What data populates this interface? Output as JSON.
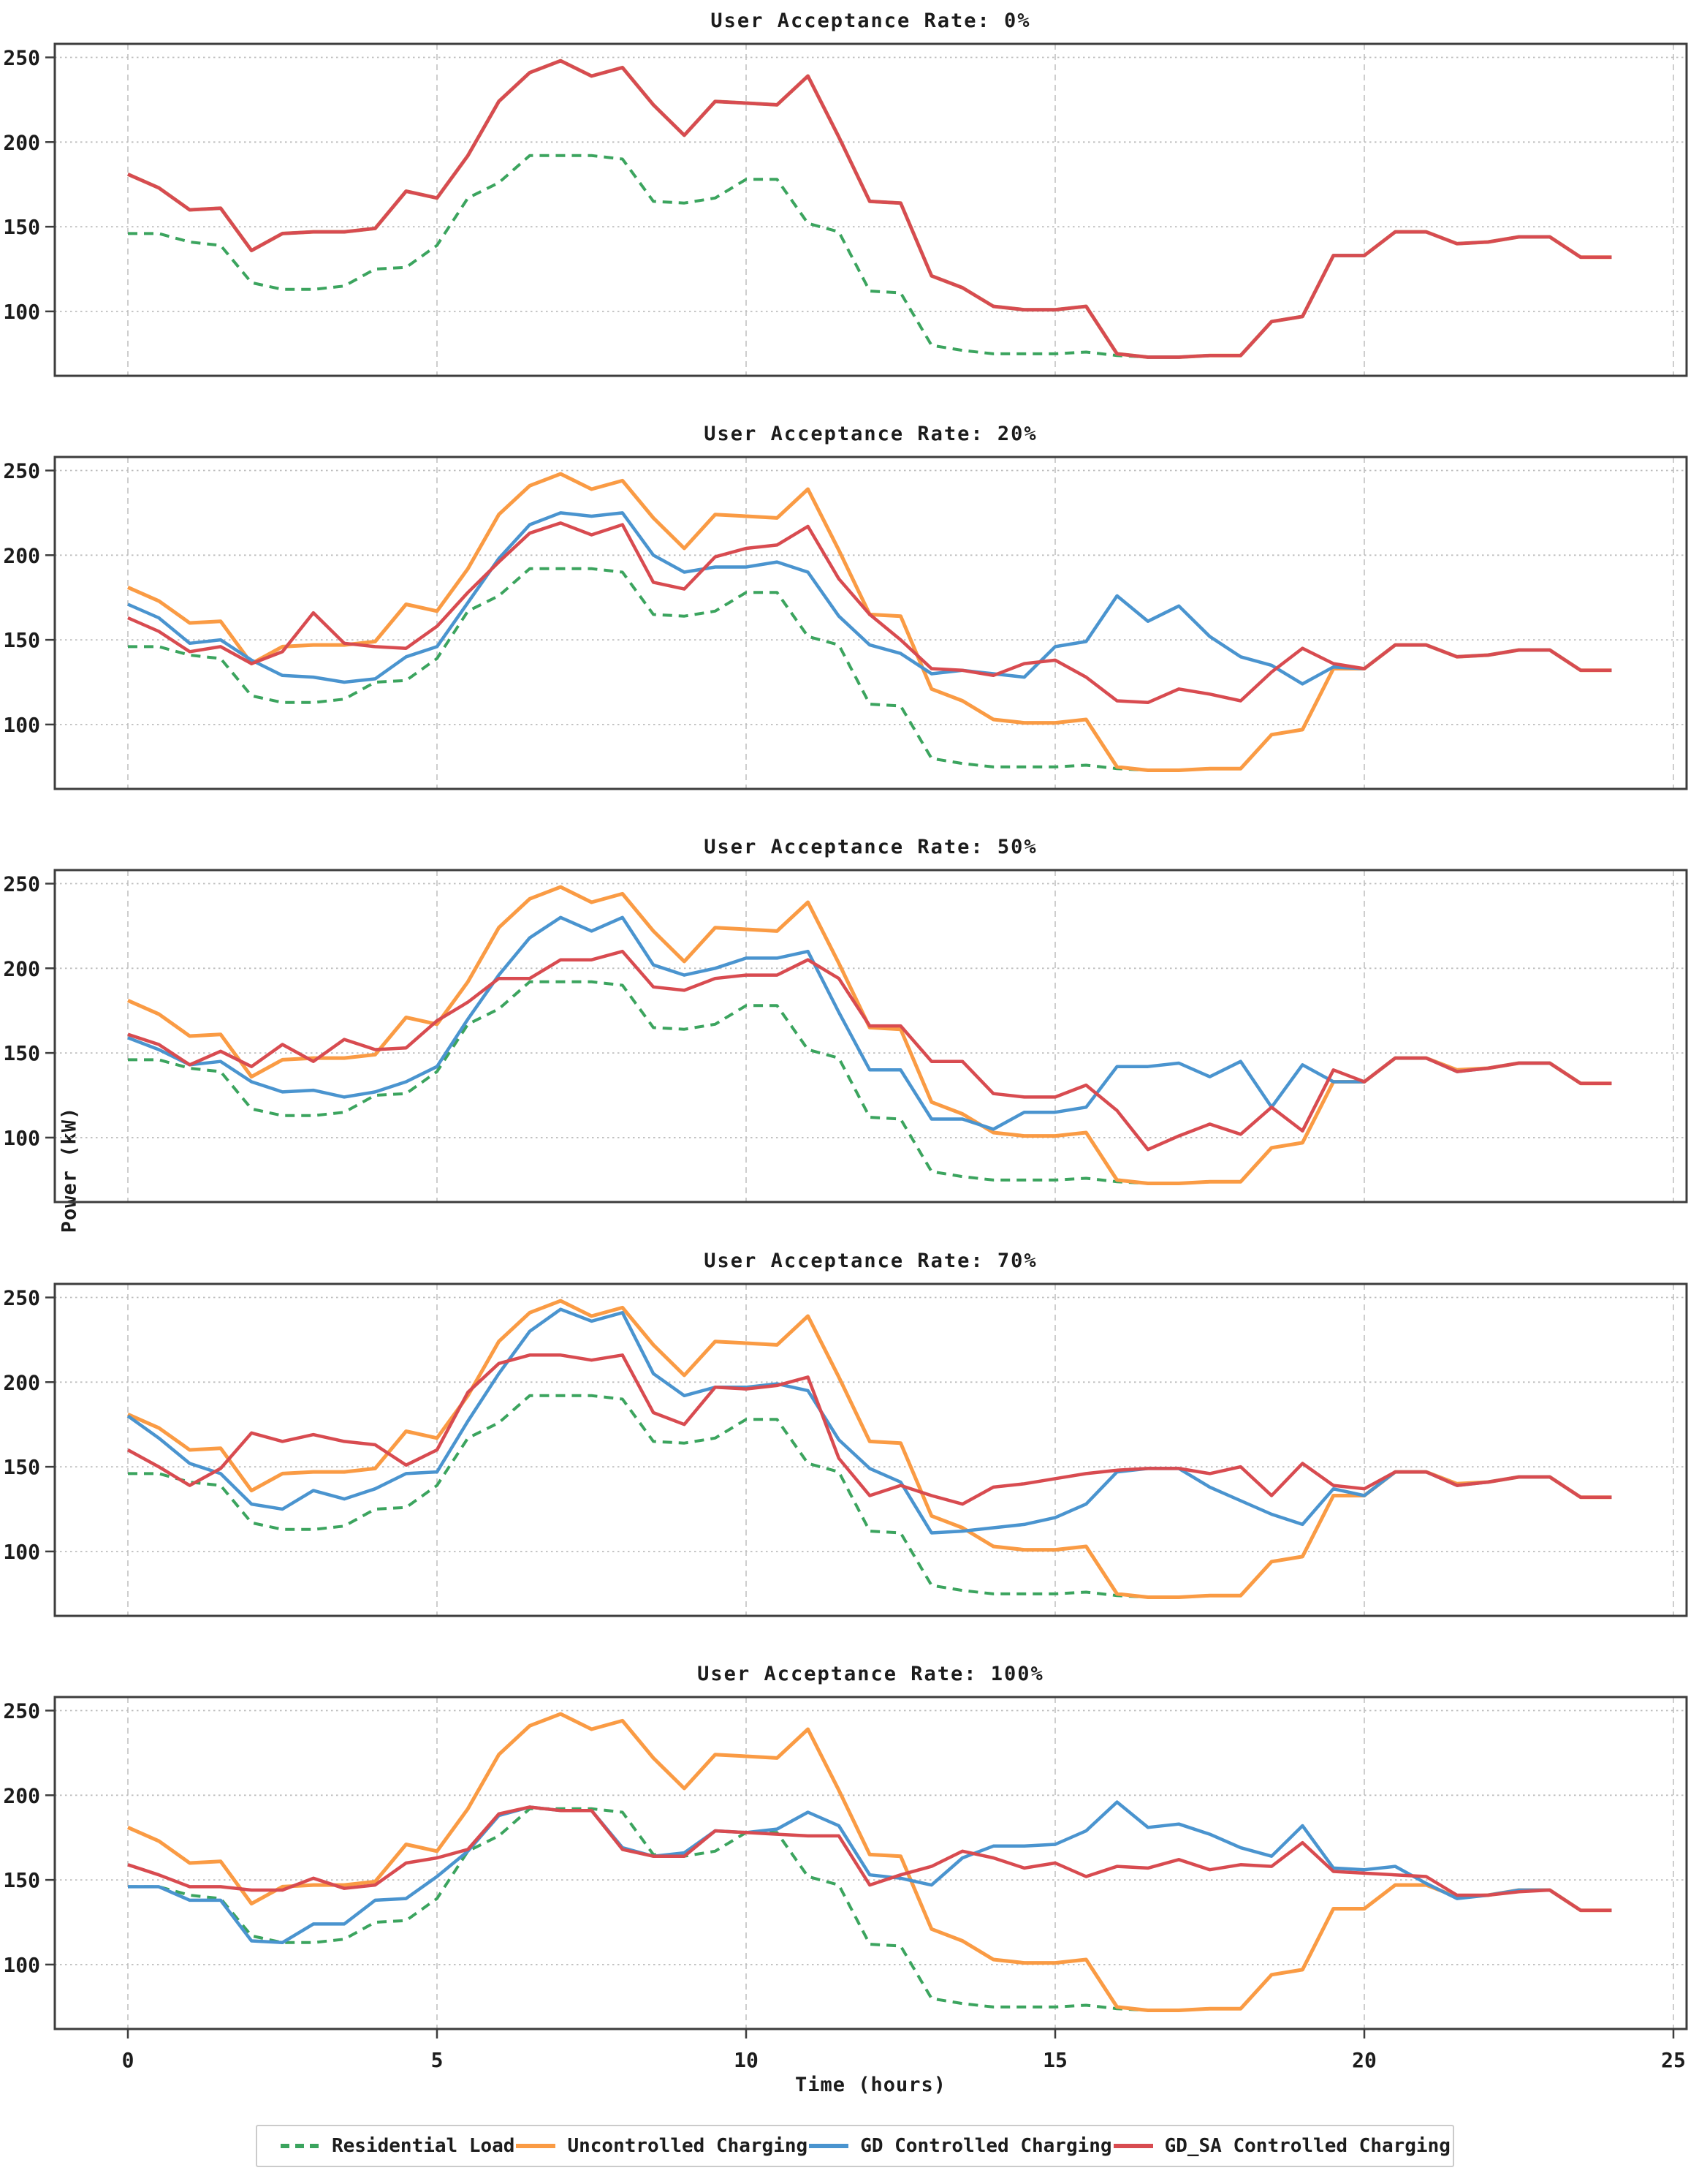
{
  "figure": {
    "ylabel": "Power (kW)",
    "xlabel": "Time (hours)"
  },
  "colors": {
    "residential": "#3ba45e",
    "uncontrolled": "#fa9b44",
    "gd": "#4a94cf",
    "gd_sa": "#d84b50",
    "grid": "#bdbdbd",
    "spine": "#3d3d3d",
    "text": "#1c1c1c"
  },
  "legend": {
    "items": [
      {
        "label": "Residential Load",
        "series": "residential",
        "dashed": true
      },
      {
        "label": "Uncontrolled Charging",
        "series": "uncontrolled",
        "dashed": false
      },
      {
        "label": "GD Controlled Charging",
        "series": "gd",
        "dashed": false
      },
      {
        "label": "GD_SA Controlled Charging",
        "series": "gd_sa",
        "dashed": false
      }
    ]
  },
  "chart_data": {
    "type": "line",
    "xlabel": "Time (hours)",
    "ylabel": "Power (kW)",
    "xticks": [
      0,
      5,
      10,
      15,
      20,
      25
    ],
    "yticks": [
      100,
      150,
      200,
      250
    ],
    "xlim": [
      -1.2,
      25.3
    ],
    "ylim": [
      62,
      258
    ],
    "grid": true,
    "legend_position": "bottom",
    "series_order": [
      "residential",
      "uncontrolled",
      "gd",
      "gd_sa"
    ],
    "x_hours": [
      0,
      0.5,
      1,
      1.5,
      2,
      2.5,
      3,
      3.5,
      4,
      4.5,
      5,
      5.5,
      6,
      6.5,
      7,
      7.5,
      8,
      8.5,
      9,
      9.5,
      10,
      10.5,
      11,
      11.5,
      12,
      12.5,
      13,
      13.5,
      14,
      14.5,
      15,
      15.5,
      16,
      16.5,
      17,
      17.5,
      18,
      18.5,
      19,
      19.5,
      20,
      20.5,
      21,
      21.5,
      22,
      22.5,
      23,
      23.5,
      24
    ],
    "subplots": [
      {
        "title": "User Acceptance Rate: 0%",
        "series": {
          "residential": [
            146,
            146,
            141,
            139,
            117,
            113,
            113,
            115,
            125,
            126,
            139,
            167,
            176,
            192,
            192,
            192,
            190,
            165,
            164,
            167,
            178,
            178,
            152,
            147,
            112,
            111,
            80,
            77,
            75,
            75,
            75,
            76,
            74,
            73,
            73,
            74,
            74,
            94,
            97,
            133,
            133,
            147,
            147,
            140,
            141,
            144,
            144,
            132,
            132
          ],
          "uncontrolled": [
            181,
            173,
            160,
            161,
            136,
            146,
            147,
            147,
            149,
            171,
            167,
            192,
            224,
            241,
            248,
            239,
            244,
            222,
            204,
            224,
            223,
            222,
            239,
            203,
            165,
            164,
            121,
            114,
            103,
            101,
            101,
            103,
            75,
            73,
            73,
            74,
            74,
            94,
            97,
            133,
            133,
            147,
            147,
            140,
            141,
            144,
            144,
            132,
            132
          ],
          "gd": [
            181,
            173,
            160,
            161,
            136,
            146,
            147,
            147,
            149,
            171,
            167,
            192,
            224,
            241,
            248,
            239,
            244,
            222,
            204,
            224,
            223,
            222,
            239,
            203,
            165,
            164,
            121,
            114,
            103,
            101,
            101,
            103,
            75,
            73,
            73,
            74,
            74,
            94,
            97,
            133,
            133,
            147,
            147,
            140,
            141,
            144,
            144,
            132,
            132
          ],
          "gd_sa": [
            181,
            173,
            160,
            161,
            136,
            146,
            147,
            147,
            149,
            171,
            167,
            192,
            224,
            241,
            248,
            239,
            244,
            222,
            204,
            224,
            223,
            222,
            239,
            203,
            165,
            164,
            121,
            114,
            103,
            101,
            101,
            103,
            75,
            73,
            73,
            74,
            74,
            94,
            97,
            133,
            133,
            147,
            147,
            140,
            141,
            144,
            144,
            132,
            132
          ]
        }
      },
      {
        "title": "User Acceptance Rate: 20%",
        "series": {
          "residential": [
            146,
            146,
            141,
            139,
            117,
            113,
            113,
            115,
            125,
            126,
            139,
            167,
            176,
            192,
            192,
            192,
            190,
            165,
            164,
            167,
            178,
            178,
            152,
            147,
            112,
            111,
            80,
            77,
            75,
            75,
            75,
            76,
            74,
            73,
            73,
            74,
            74,
            94,
            97,
            133,
            133,
            147,
            147,
            140,
            141,
            144,
            144,
            132,
            132
          ],
          "uncontrolled": [
            181,
            173,
            160,
            161,
            136,
            146,
            147,
            147,
            149,
            171,
            167,
            192,
            224,
            241,
            248,
            239,
            244,
            222,
            204,
            224,
            223,
            222,
            239,
            203,
            165,
            164,
            121,
            114,
            103,
            101,
            101,
            103,
            75,
            73,
            73,
            74,
            74,
            94,
            97,
            133,
            133,
            147,
            147,
            140,
            141,
            144,
            144,
            132,
            132
          ],
          "gd": [
            171,
            163,
            148,
            150,
            138,
            129,
            128,
            125,
            127,
            140,
            146,
            172,
            198,
            218,
            225,
            223,
            225,
            200,
            190,
            193,
            193,
            196,
            190,
            164,
            147,
            142,
            130,
            132,
            130,
            128,
            146,
            149,
            176,
            161,
            170,
            152,
            140,
            135,
            124,
            134,
            133,
            147,
            147,
            140,
            141,
            144,
            144,
            132,
            132
          ],
          "gd_sa": [
            163,
            155,
            143,
            146,
            136,
            143,
            166,
            148,
            146,
            145,
            158,
            178,
            196,
            213,
            219,
            212,
            218,
            184,
            180,
            199,
            204,
            206,
            217,
            186,
            165,
            150,
            133,
            132,
            129,
            136,
            138,
            128,
            114,
            113,
            121,
            118,
            114,
            131,
            145,
            136,
            133,
            147,
            147,
            140,
            141,
            144,
            144,
            132,
            132
          ]
        }
      },
      {
        "title": "User Acceptance Rate: 50%",
        "series": {
          "residential": [
            146,
            146,
            141,
            139,
            117,
            113,
            113,
            115,
            125,
            126,
            139,
            167,
            176,
            192,
            192,
            192,
            190,
            165,
            164,
            167,
            178,
            178,
            152,
            147,
            112,
            111,
            80,
            77,
            75,
            75,
            75,
            76,
            74,
            73,
            73,
            74,
            74,
            94,
            97,
            133,
            133,
            147,
            147,
            140,
            141,
            144,
            144,
            132,
            132
          ],
          "uncontrolled": [
            181,
            173,
            160,
            161,
            136,
            146,
            147,
            147,
            149,
            171,
            167,
            192,
            224,
            241,
            248,
            239,
            244,
            222,
            204,
            224,
            223,
            222,
            239,
            203,
            165,
            164,
            121,
            114,
            103,
            101,
            101,
            103,
            75,
            73,
            73,
            74,
            74,
            94,
            97,
            133,
            133,
            147,
            147,
            140,
            141,
            144,
            144,
            132,
            132
          ],
          "gd": [
            159,
            152,
            143,
            145,
            133,
            127,
            128,
            124,
            127,
            133,
            142,
            170,
            196,
            218,
            230,
            222,
            230,
            202,
            196,
            200,
            206,
            206,
            210,
            174,
            140,
            140,
            111,
            111,
            105,
            115,
            115,
            118,
            142,
            142,
            144,
            136,
            145,
            118,
            143,
            133,
            133,
            147,
            147,
            139,
            141,
            144,
            144,
            132,
            132
          ],
          "gd_sa": [
            161,
            155,
            143,
            151,
            142,
            155,
            145,
            158,
            152,
            153,
            169,
            180,
            194,
            194,
            205,
            205,
            210,
            189,
            187,
            194,
            196,
            196,
            205,
            194,
            166,
            166,
            145,
            145,
            126,
            124,
            124,
            131,
            116,
            93,
            101,
            108,
            102,
            118,
            104,
            140,
            133,
            147,
            147,
            139,
            141,
            144,
            144,
            132,
            132
          ]
        }
      },
      {
        "title": "User Acceptance Rate: 70%",
        "series": {
          "residential": [
            146,
            146,
            141,
            139,
            117,
            113,
            113,
            115,
            125,
            126,
            139,
            167,
            176,
            192,
            192,
            192,
            190,
            165,
            164,
            167,
            178,
            178,
            152,
            147,
            112,
            111,
            80,
            77,
            75,
            75,
            75,
            76,
            74,
            73,
            73,
            74,
            74,
            94,
            97,
            133,
            133,
            147,
            147,
            140,
            141,
            144,
            144,
            132,
            132
          ],
          "uncontrolled": [
            181,
            173,
            160,
            161,
            136,
            146,
            147,
            147,
            149,
            171,
            167,
            192,
            224,
            241,
            248,
            239,
            244,
            222,
            204,
            224,
            223,
            222,
            239,
            203,
            165,
            164,
            121,
            114,
            103,
            101,
            101,
            103,
            75,
            73,
            73,
            74,
            74,
            94,
            97,
            133,
            133,
            147,
            147,
            140,
            141,
            144,
            144,
            132,
            132
          ],
          "gd": [
            180,
            167,
            152,
            146,
            128,
            125,
            136,
            131,
            137,
            146,
            147,
            177,
            205,
            230,
            243,
            236,
            241,
            205,
            192,
            197,
            197,
            199,
            195,
            166,
            149,
            141,
            111,
            112,
            114,
            116,
            120,
            128,
            147,
            149,
            149,
            138,
            130,
            122,
            116,
            137,
            133,
            147,
            147,
            139,
            141,
            144,
            144,
            132,
            132
          ],
          "gd_sa": [
            160,
            150,
            139,
            149,
            170,
            165,
            169,
            165,
            163,
            151,
            160,
            194,
            211,
            216,
            216,
            213,
            216,
            182,
            175,
            197,
            196,
            198,
            203,
            155,
            133,
            139,
            133,
            128,
            138,
            140,
            143,
            146,
            148,
            149,
            149,
            146,
            150,
            133,
            152,
            139,
            137,
            147,
            147,
            139,
            141,
            144,
            144,
            132,
            132
          ]
        }
      },
      {
        "title": "User Acceptance Rate: 100%",
        "series": {
          "residential": [
            146,
            146,
            141,
            139,
            117,
            113,
            113,
            115,
            125,
            126,
            139,
            167,
            176,
            192,
            192,
            192,
            190,
            165,
            164,
            167,
            178,
            178,
            152,
            147,
            112,
            111,
            80,
            77,
            75,
            75,
            75,
            76,
            74,
            73,
            73,
            74,
            74,
            94,
            97,
            133,
            133,
            147,
            147,
            140,
            141,
            144,
            144,
            132,
            132
          ],
          "uncontrolled": [
            181,
            173,
            160,
            161,
            136,
            146,
            147,
            147,
            149,
            171,
            167,
            192,
            224,
            241,
            248,
            239,
            244,
            222,
            204,
            224,
            223,
            222,
            239,
            203,
            165,
            164,
            121,
            114,
            103,
            101,
            101,
            103,
            75,
            73,
            73,
            74,
            74,
            94,
            97,
            133,
            133,
            147,
            147,
            140,
            141,
            144,
            144,
            132,
            132
          ],
          "gd": [
            146,
            146,
            138,
            138,
            114,
            113,
            124,
            124,
            138,
            139,
            152,
            167,
            188,
            193,
            191,
            191,
            169,
            164,
            166,
            179,
            178,
            180,
            190,
            182,
            153,
            151,
            147,
            163,
            170,
            170,
            171,
            179,
            196,
            181,
            183,
            177,
            169,
            164,
            182,
            157,
            156,
            158,
            148,
            139,
            141,
            144,
            144,
            132,
            132
          ],
          "gd_sa": [
            159,
            153,
            146,
            146,
            144,
            144,
            151,
            145,
            147,
            160,
            163,
            168,
            189,
            193,
            191,
            191,
            168,
            164,
            164,
            179,
            178,
            177,
            176,
            176,
            147,
            153,
            158,
            167,
            163,
            157,
            160,
            152,
            158,
            157,
            162,
            156,
            159,
            158,
            172,
            155,
            154,
            153,
            152,
            141,
            141,
            143,
            144,
            132,
            132
          ]
        }
      }
    ]
  }
}
